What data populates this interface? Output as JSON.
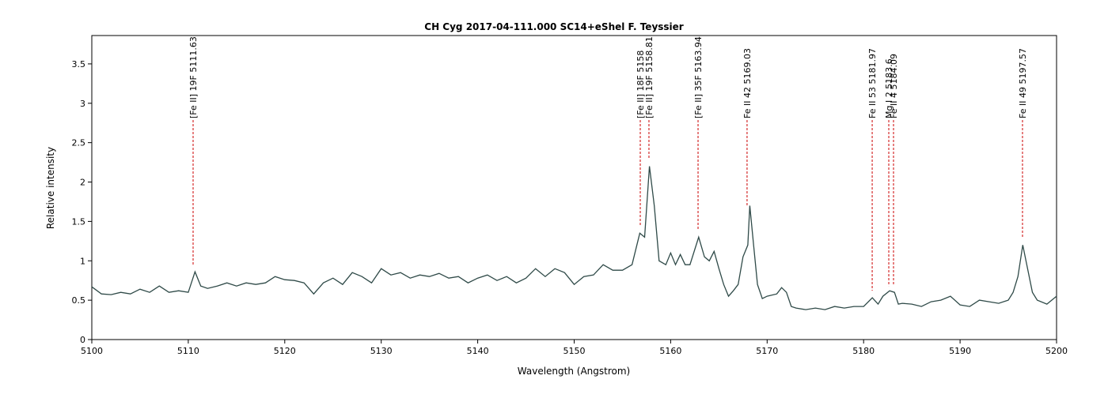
{
  "chart_data": {
    "type": "line",
    "title": "CH Cyg  2017-04-111.000  SC14+eShel F. Teyssier",
    "xlabel": "Wavelength (Angstrom)",
    "ylabel": "Relative intensity",
    "xlim": [
      5100,
      5200
    ],
    "ylim": [
      0,
      3.86
    ],
    "xticks": [
      5100,
      5110,
      5120,
      5130,
      5140,
      5150,
      5160,
      5170,
      5180,
      5190,
      5200
    ],
    "yticks": [
      0,
      0.5,
      1,
      1.5,
      2,
      2.5,
      3,
      3.5
    ],
    "series": [
      {
        "color": "#2f4a48",
        "x": [
          5100,
          5101,
          5102,
          5103,
          5104,
          5105,
          5106,
          5107,
          5108,
          5109,
          5110,
          5110.7,
          5111.3,
          5112,
          5113,
          5114,
          5115,
          5116,
          5117,
          5118,
          5119,
          5120,
          5121,
          5122,
          5123,
          5124,
          5125,
          5126,
          5127,
          5128,
          5129,
          5130,
          5131,
          5132,
          5133,
          5134,
          5135,
          5136,
          5137,
          5138,
          5139,
          5140,
          5141,
          5142,
          5143,
          5144,
          5145,
          5146,
          5147,
          5148,
          5149,
          5150,
          5151,
          5152,
          5153,
          5154,
          5155,
          5156,
          5156.8,
          5157.3,
          5157.8,
          5158.3,
          5158.8,
          5159.5,
          5160,
          5160.5,
          5161,
          5161.5,
          5162,
          5162.9,
          5163.5,
          5164,
          5164.5,
          5165,
          5165.5,
          5166,
          5166.5,
          5167,
          5167.5,
          5168,
          5168.2,
          5168.6,
          5169,
          5169.5,
          5170,
          5171,
          5171.5,
          5172,
          5172.5,
          5173,
          5174,
          5175,
          5176,
          5177,
          5178,
          5179,
          5180,
          5180.9,
          5181.5,
          5182,
          5182.7,
          5183.2,
          5183.6,
          5184,
          5185,
          5186,
          5187,
          5188,
          5189,
          5190,
          5191,
          5192,
          5193,
          5194,
          5195,
          5195.5,
          5196,
          5196.5,
          5197,
          5197.5,
          5198,
          5199,
          5200
        ],
        "values": [
          0.67,
          0.58,
          0.57,
          0.6,
          0.58,
          0.64,
          0.6,
          0.68,
          0.6,
          0.62,
          0.6,
          0.86,
          0.68,
          0.65,
          0.68,
          0.72,
          0.68,
          0.72,
          0.7,
          0.72,
          0.8,
          0.76,
          0.75,
          0.72,
          0.58,
          0.72,
          0.78,
          0.7,
          0.85,
          0.8,
          0.72,
          0.9,
          0.82,
          0.85,
          0.78,
          0.82,
          0.8,
          0.84,
          0.78,
          0.8,
          0.72,
          0.78,
          0.82,
          0.75,
          0.8,
          0.72,
          0.78,
          0.9,
          0.8,
          0.9,
          0.85,
          0.7,
          0.8,
          0.82,
          0.95,
          0.88,
          0.88,
          0.95,
          1.35,
          1.3,
          2.2,
          1.7,
          1.0,
          0.95,
          1.1,
          0.95,
          1.08,
          0.95,
          0.95,
          1.3,
          1.05,
          1.0,
          1.12,
          0.9,
          0.7,
          0.55,
          0.62,
          0.7,
          1.05,
          1.2,
          1.7,
          1.2,
          0.7,
          0.52,
          0.55,
          0.58,
          0.66,
          0.6,
          0.42,
          0.4,
          0.38,
          0.4,
          0.38,
          0.42,
          0.4,
          0.42,
          0.42,
          0.53,
          0.45,
          0.55,
          0.62,
          0.6,
          0.45,
          0.46,
          0.45,
          0.42,
          0.48,
          0.5,
          0.55,
          0.44,
          0.42,
          0.5,
          0.48,
          0.46,
          0.5,
          0.6,
          0.8,
          1.2,
          0.9,
          0.6,
          0.5,
          0.45,
          0.55
        ]
      }
    ],
    "annotations": [
      {
        "text": "[Fe II] 19F 5111.63",
        "x": 5110.5,
        "y": 0.95
      },
      {
        "text": "[Fe II] 18F 5158",
        "x": 5156.85,
        "y": 1.45
      },
      {
        "text": "[Fe II] 19F 5158.81",
        "x": 5157.75,
        "y": 2.3
      },
      {
        "text": "[Fe II] 35F 5163.94",
        "x": 5162.84,
        "y": 1.4
      },
      {
        "text": "Fe II 42 5169.03",
        "x": 5167.92,
        "y": 1.7
      },
      {
        "text": "Fe II 53 5181.97",
        "x": 5180.89,
        "y": 0.62
      },
      {
        "text": "Mg I 2 5183.6",
        "x": 5182.61,
        "y": 0.68
      },
      {
        "text": "Fe II 4 5184.09",
        "x": 5183.1,
        "y": 0.7
      },
      {
        "text": "Fe II 49 5197.57",
        "x": 5196.47,
        "y": 1.3
      }
    ],
    "annotation_color": "#cc0000"
  }
}
